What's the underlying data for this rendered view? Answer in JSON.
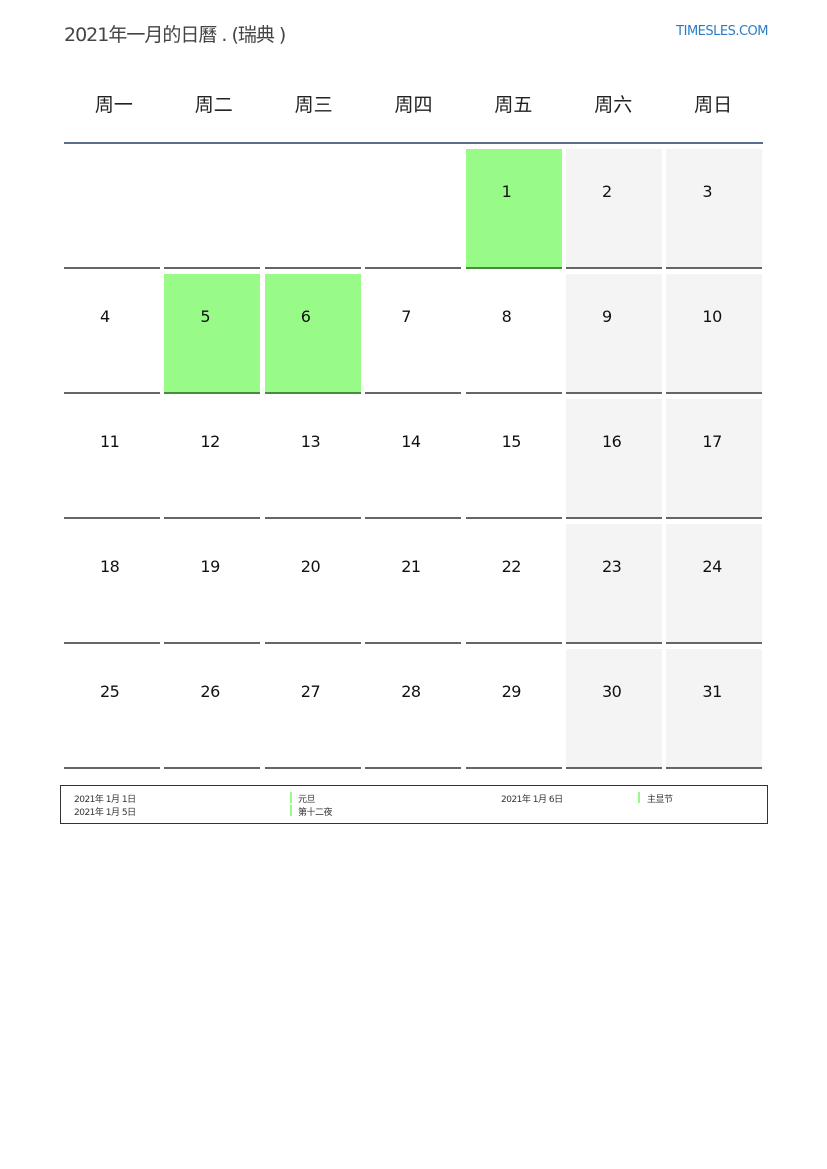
{
  "title": "2021年一月的日曆 . (瑞典 )",
  "brand": "TIMESLES.COM",
  "weekdays": [
    "周一",
    "周二",
    "周三",
    "周四",
    "周五",
    "周六",
    "周日"
  ],
  "start_offset": 4,
  "days_in_month": 31,
  "holidays": [
    1,
    5,
    6
  ],
  "colors": {
    "holiday": "#99fb87",
    "weekend": "#f4f4f4",
    "header_line": "#5a6f8e",
    "brand": "#2a7cc7"
  },
  "legend": [
    {
      "date": "2021年 1月 1日",
      "name": "元旦"
    },
    {
      "date": "2021年 1月 5日",
      "name": "第十二夜"
    },
    {
      "date": "2021年 1月 6日",
      "name": "主显节"
    }
  ]
}
